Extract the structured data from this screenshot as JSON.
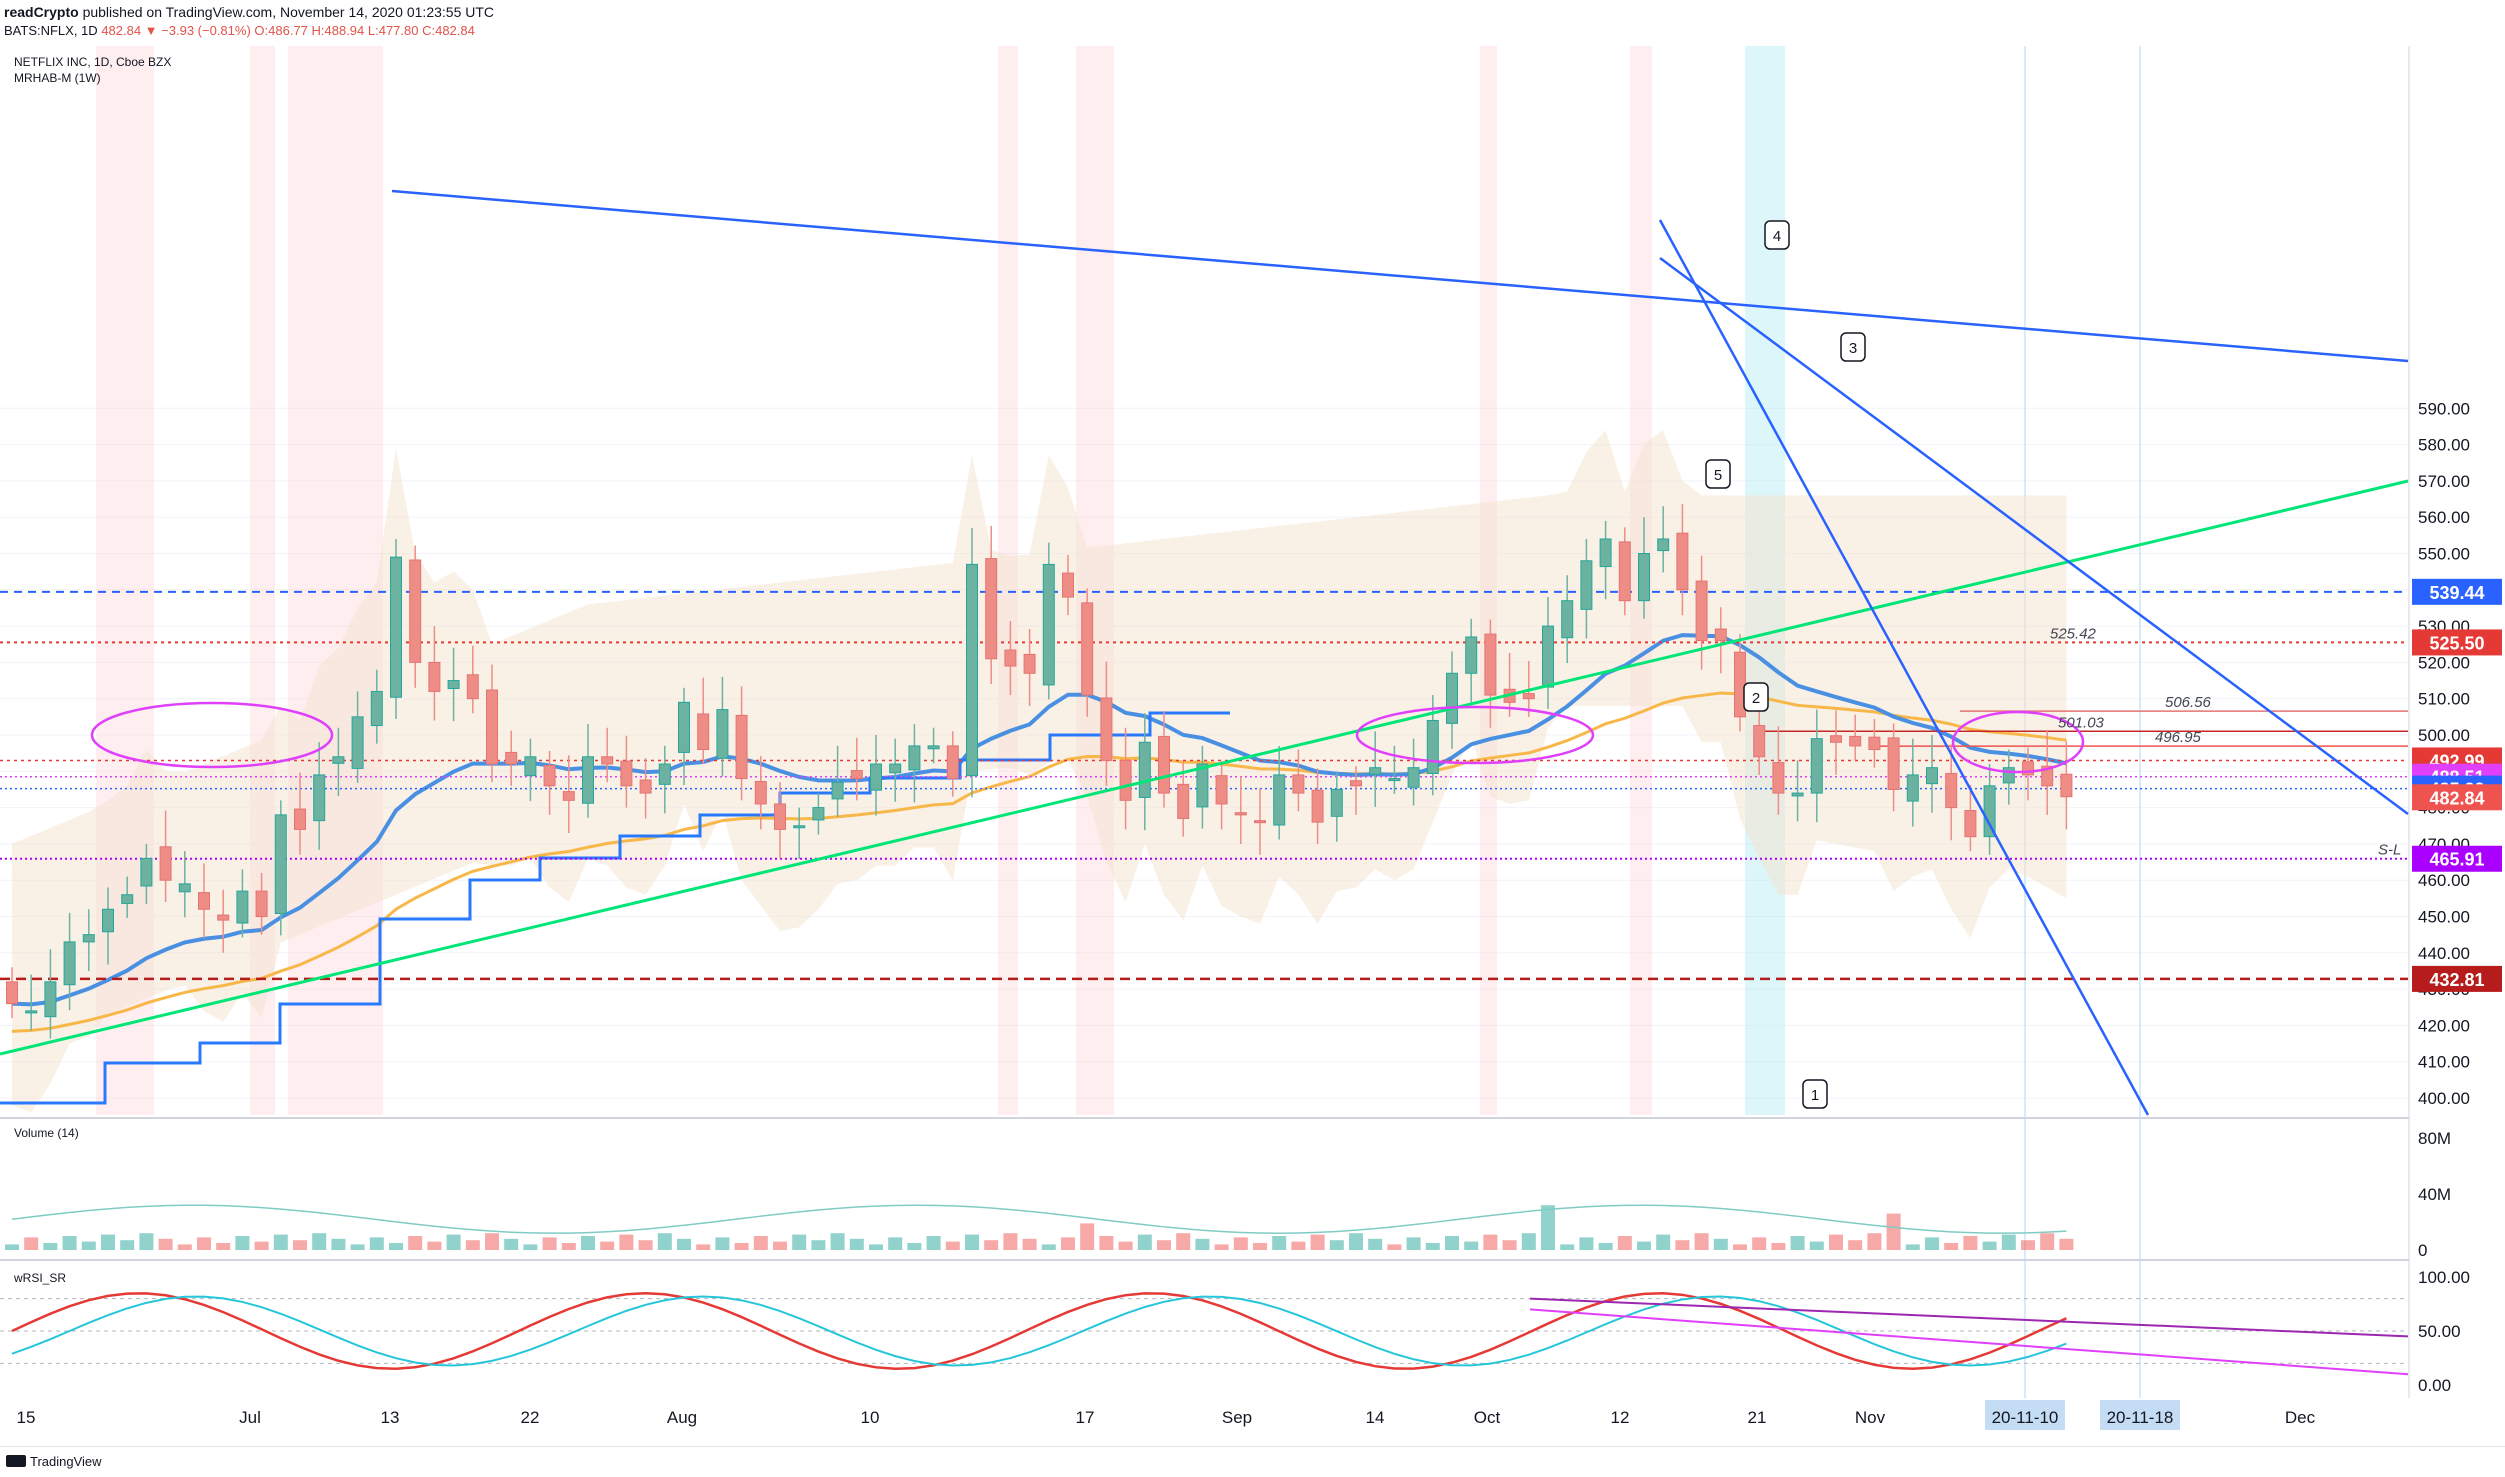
{
  "header": {
    "publisher": "readCrypto",
    "published_text": "published on TradingView.com, November 14, 2020 01:23:55 UTC",
    "symbol": "BATS:NFLX, 1D",
    "change": "482.84 ▼ −3.93 (−0.81%)",
    "ohlc": "O:486.77 H:488.94 L:477.80 C:482.84"
  },
  "legend": {
    "title": "NETFLIX INC, 1D, Cboe BZX",
    "indicator": "MRHAB-M (1W)",
    "volume_label": "Volume (14)",
    "rsi_label": "wRSI_SR"
  },
  "footer": {
    "brand": "TradingView"
  },
  "colors": {
    "up": "#26a69a",
    "down": "#ef5350",
    "trend": "#2962ff",
    "green_line": "#00e676",
    "ema": "#f7b749",
    "cloud": "#f4e4d1",
    "magenta": "#e040fb"
  },
  "chart_data": [
    {
      "type": "candlestick",
      "title": "NETFLIX INC, 1D, Cboe BZX",
      "ylim": [
        395,
        595
      ],
      "y_ticks": [
        "400.00",
        "410.00",
        "420.00",
        "430.00",
        "440.00",
        "450.00",
        "460.00",
        "470.00",
        "480.00",
        "490.00",
        "500.00",
        "510.00",
        "520.00",
        "530.00",
        "540.00",
        "550.00",
        "560.00",
        "570.00",
        "580.00",
        "590.00"
      ],
      "x_ticks": [
        "15",
        "Jul",
        "13",
        "22",
        "Aug",
        "10",
        "17",
        "Sep",
        "14",
        "Oct",
        "12",
        "21",
        "Nov",
        "20-11-10",
        "20-11-18",
        "Dec"
      ],
      "price_labels": [
        {
          "value": 539.44,
          "text": "539.44",
          "color": "#2962ff"
        },
        {
          "value": 525.5,
          "text": "525.50",
          "color": "#e53935"
        },
        {
          "value": 492.99,
          "text": "492.99",
          "color": "#e53935"
        },
        {
          "value": 488.51,
          "text": "488.51",
          "color": "#e040fb"
        },
        {
          "value": 485.23,
          "text": "485.23",
          "color": "#2962ff"
        },
        {
          "value": 482.84,
          "text": "482.84",
          "color": "#ef5350"
        },
        {
          "value": 465.91,
          "text": "465.91",
          "color": "#aa00ff"
        },
        {
          "value": 432.81,
          "text": "432.81",
          "color": "#b71c1c"
        }
      ],
      "level_texts": [
        {
          "value": 525.42,
          "text": "525.42"
        },
        {
          "value": 506.56,
          "text": "506.56"
        },
        {
          "value": 501.03,
          "text": "501.03"
        },
        {
          "value": 496.95,
          "text": "496.95"
        },
        {
          "value": 465.91,
          "text": "S-L"
        }
      ],
      "callouts": [
        "1",
        "2",
        "3",
        "4",
        "5"
      ],
      "close_series": [
        426,
        424,
        432,
        443,
        445,
        452,
        456,
        466,
        460,
        459,
        452,
        449,
        457,
        450,
        478,
        474,
        489,
        494,
        505,
        512,
        549,
        520,
        512,
        515,
        510,
        492,
        492,
        494,
        486,
        482,
        494,
        492,
        486,
        484,
        492,
        509,
        496,
        507,
        488,
        481,
        474,
        475,
        480,
        487,
        488,
        492,
        492,
        497,
        497,
        488,
        547,
        521,
        519,
        517,
        547,
        538,
        511,
        493,
        482,
        498,
        484,
        477,
        492,
        481,
        478,
        476,
        489,
        484,
        476,
        485,
        486,
        491,
        488,
        491,
        504,
        517,
        527,
        511,
        509,
        510,
        530,
        537,
        548,
        554,
        537,
        550,
        554,
        540,
        526,
        526,
        505,
        494,
        484,
        484,
        499,
        498,
        497,
        496,
        485,
        489,
        491,
        480,
        472,
        486,
        491,
        489,
        486,
        483
      ]
    },
    {
      "type": "bar",
      "title": "Volume (14)",
      "ylim": [
        0,
        80
      ],
      "y_ticks": [
        "80M",
        "40M",
        "0"
      ]
    },
    {
      "type": "line",
      "title": "wRSI_SR",
      "ylim": [
        0,
        100
      ],
      "y_ticks": [
        "100.00",
        "50.00",
        "0.00"
      ]
    }
  ]
}
